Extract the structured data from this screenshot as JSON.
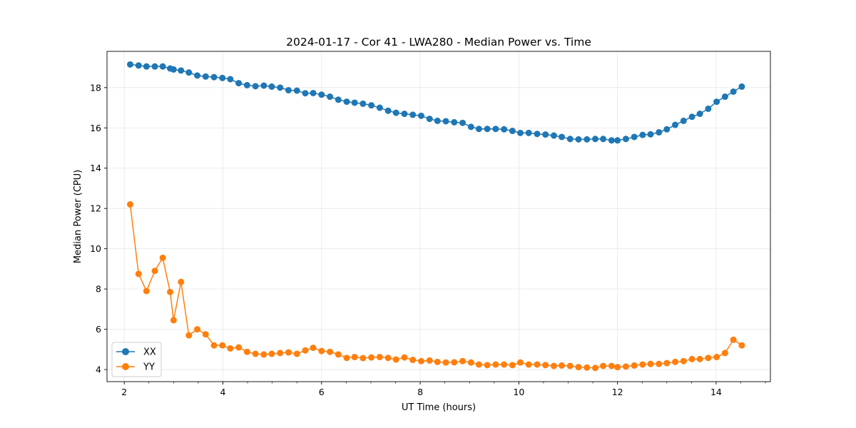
{
  "chart_data": {
    "type": "line",
    "title": "2024-01-17 - Cor 41 - LWA280 - Median Power vs. Time",
    "xlabel": "UT Time (hours)",
    "ylabel": "Median Power (CPU)",
    "xlim": [
      1.65,
      15.1
    ],
    "ylim": [
      3.4,
      19.8
    ],
    "xticks": [
      2,
      4,
      6,
      8,
      10,
      12,
      14
    ],
    "xticklabels": [
      "2",
      "4",
      "6",
      "8",
      "10",
      "12",
      "14"
    ],
    "yticks": [
      4,
      6,
      8,
      10,
      12,
      14,
      16,
      18
    ],
    "yticklabels": [
      "4",
      "6",
      "8",
      "10",
      "12",
      "14",
      "16",
      "18"
    ],
    "grid": true,
    "legend_position": "lower-left",
    "x": [
      2.12,
      2.29,
      2.45,
      2.62,
      2.78,
      2.93,
      3.0,
      3.15,
      3.31,
      3.48,
      3.65,
      3.82,
      3.99,
      4.15,
      4.32,
      4.49,
      4.66,
      4.83,
      4.99,
      5.16,
      5.33,
      5.5,
      5.67,
      5.83,
      6.0,
      6.17,
      6.34,
      6.51,
      6.67,
      6.84,
      7.01,
      7.18,
      7.35,
      7.51,
      7.68,
      7.85,
      8.02,
      8.19,
      8.35,
      8.52,
      8.69,
      8.86,
      9.03,
      9.19,
      9.36,
      9.53,
      9.7,
      9.87,
      10.03,
      10.2,
      10.37,
      10.54,
      10.71,
      10.87,
      11.04,
      11.21,
      11.38,
      11.55,
      11.71,
      11.88,
      12.0,
      12.17,
      12.34,
      12.51,
      12.67,
      12.84,
      13.0,
      13.17,
      13.34,
      13.51,
      13.67,
      13.84,
      14.01,
      14.18,
      14.35,
      14.52
    ],
    "series": [
      {
        "name": "XX",
        "color": "#1f77b4",
        "values": [
          19.15,
          19.1,
          19.05,
          19.05,
          19.05,
          18.95,
          18.9,
          18.85,
          18.75,
          18.6,
          18.55,
          18.52,
          18.48,
          18.42,
          18.22,
          18.12,
          18.07,
          18.1,
          18.05,
          18.0,
          17.87,
          17.85,
          17.72,
          17.73,
          17.65,
          17.55,
          17.4,
          17.3,
          17.25,
          17.2,
          17.12,
          17.0,
          16.85,
          16.75,
          16.7,
          16.65,
          16.6,
          16.45,
          16.35,
          16.33,
          16.28,
          16.25,
          16.05,
          15.95,
          15.95,
          15.95,
          15.93,
          15.85,
          15.75,
          15.75,
          15.7,
          15.67,
          15.62,
          15.55,
          15.45,
          15.43,
          15.43,
          15.45,
          15.45,
          15.38,
          15.38,
          15.45,
          15.55,
          15.65,
          15.68,
          15.78,
          15.93,
          16.15,
          16.35,
          16.55,
          16.7,
          16.95,
          17.3,
          17.55,
          17.8,
          18.05
        ]
      },
      {
        "name": "YY",
        "color": "#ff7f0e",
        "values": [
          12.2,
          8.75,
          7.9,
          8.9,
          9.55,
          7.85,
          6.45,
          8.35,
          5.7,
          6.0,
          5.75,
          5.2,
          5.2,
          5.05,
          5.1,
          4.88,
          4.78,
          4.75,
          4.78,
          4.82,
          4.85,
          4.78,
          4.95,
          5.08,
          4.92,
          4.88,
          4.75,
          4.58,
          4.62,
          4.57,
          4.6,
          4.62,
          4.58,
          4.5,
          4.6,
          4.48,
          4.42,
          4.45,
          4.38,
          4.35,
          4.36,
          4.42,
          4.35,
          4.25,
          4.22,
          4.25,
          4.25,
          4.22,
          4.35,
          4.25,
          4.25,
          4.22,
          4.18,
          4.2,
          4.18,
          4.12,
          4.1,
          4.08,
          4.18,
          4.18,
          4.12,
          4.15,
          4.2,
          4.25,
          4.28,
          4.28,
          4.32,
          4.38,
          4.42,
          4.52,
          4.52,
          4.58,
          4.62,
          4.82,
          5.48,
          5.2
        ]
      }
    ]
  }
}
